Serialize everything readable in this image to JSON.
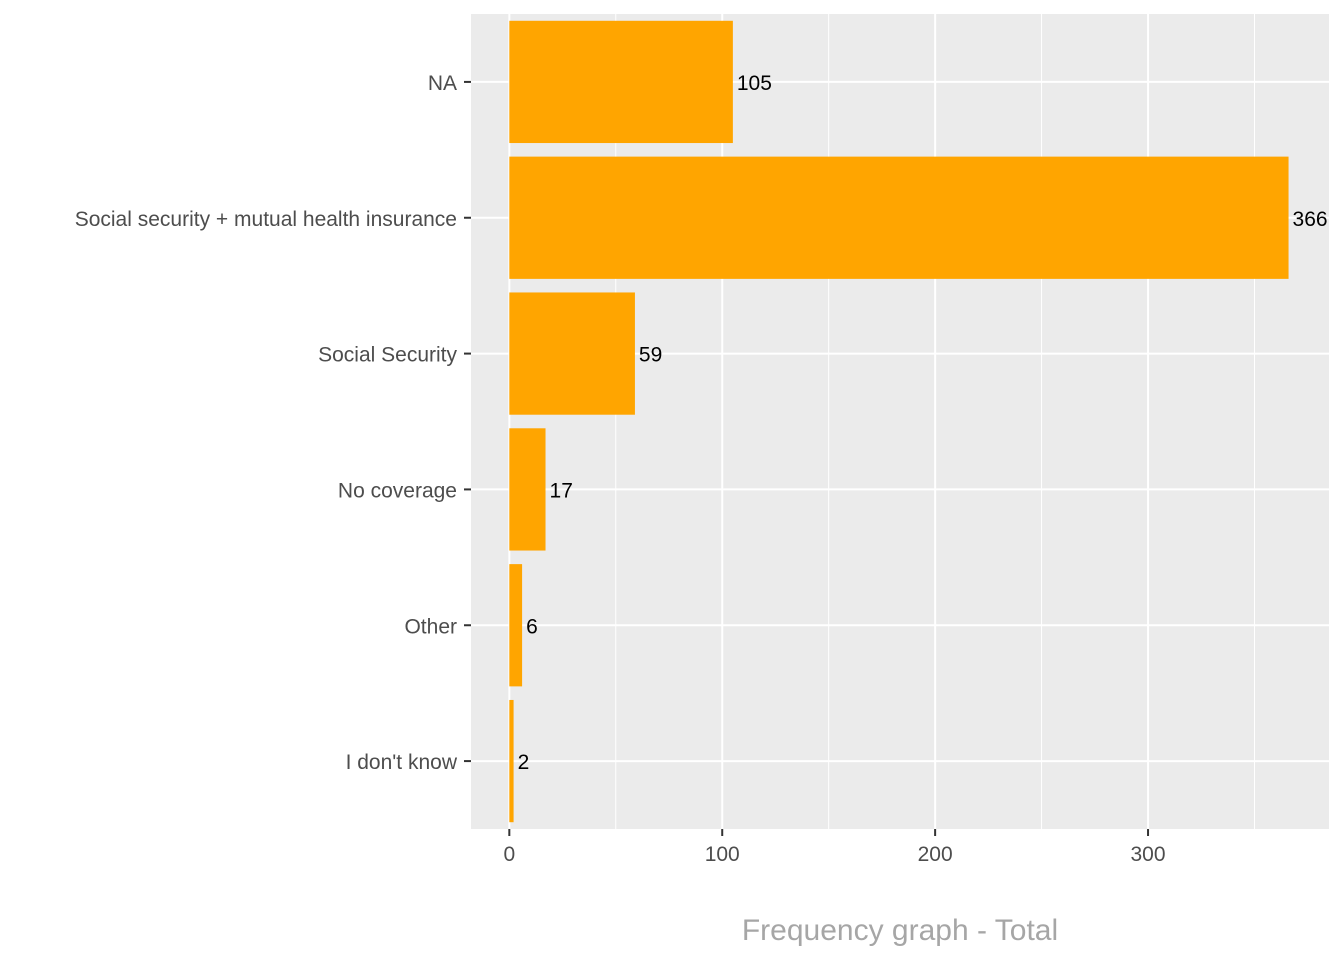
{
  "chart_data": {
    "type": "bar",
    "orientation": "horizontal",
    "categories": [
      "NA",
      "Social security + mutual health insurance",
      "Social Security",
      "No coverage",
      "Other",
      "I don't know"
    ],
    "values": [
      105,
      366,
      59,
      17,
      6,
      2
    ],
    "data_labels": [
      "105",
      "366",
      "59",
      "17",
      "6",
      "2"
    ],
    "xlabel": "Frequency graph - Total",
    "ylabel": "",
    "title": "",
    "xlim": [
      -18,
      385
    ],
    "x_ticks": [
      0,
      100,
      200,
      300
    ],
    "x_tick_labels": [
      "0",
      "100",
      "200",
      "300"
    ],
    "grid": true,
    "legend": "none",
    "colors": {
      "bar": "#FFA500",
      "panel": "#EBEBEB",
      "grid": "#FFFFFF"
    }
  }
}
